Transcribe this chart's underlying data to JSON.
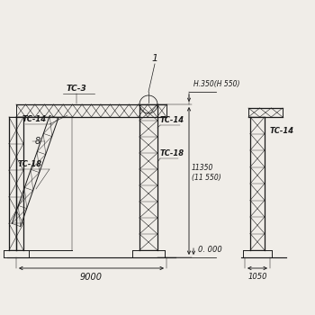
{
  "bg_color": "#f0ede8",
  "line_color": "#1a1a1a",
  "labels": {
    "tc3": "TC-3",
    "tc14_left": "TC-14",
    "tc14_right": "TC-14",
    "tc14_right2": "TC-14",
    "tc18_left": "TC-18",
    "tc18_right": "TC-18",
    "b": "8",
    "dim_top": "H.350(H 550)",
    "dim_vert": "11350\n(11 550)",
    "dim_zero": "0. 000",
    "dim_horiz": "9000",
    "dim_side": "1050",
    "label1": "1"
  },
  "lw": 0.7
}
